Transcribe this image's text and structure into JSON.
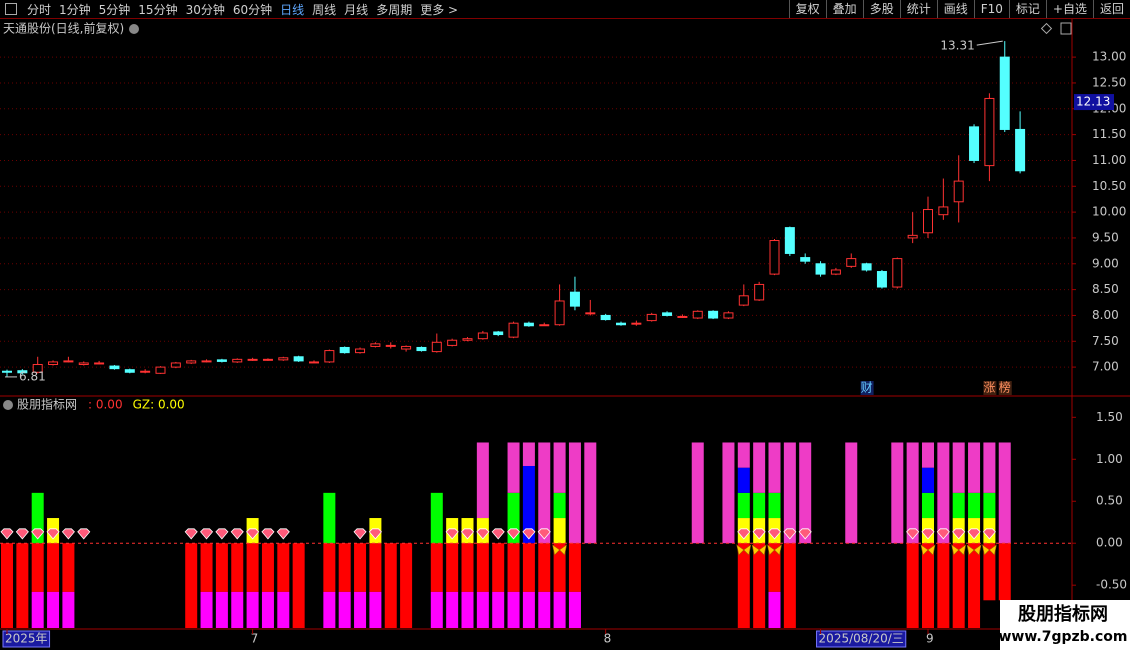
{
  "toolbar": {
    "left": [
      "分时",
      "1分钟",
      "5分钟",
      "15分钟",
      "30分钟",
      "60分钟",
      "日线",
      "周线",
      "月线",
      "多周期",
      "更多 >"
    ],
    "active": 6,
    "right": [
      "复权",
      "叠加",
      "多股",
      "统计",
      "画线",
      "F10",
      "标记",
      "+自选",
      "返回"
    ]
  },
  "watermark": {
    "title": "股朋指标网",
    "url": "www.7gpzb.com"
  },
  "chart_data": [
    {
      "type": "candlestick",
      "title": "天通股份(日线,前复权)",
      "categories": [
        "2025年",
        null,
        null,
        null,
        null,
        null,
        null,
        null,
        null,
        null,
        null,
        null,
        null,
        null,
        null,
        null,
        "7",
        null,
        null,
        null,
        null,
        null,
        null,
        null,
        null,
        null,
        null,
        null,
        null,
        null,
        null,
        null,
        null,
        null,
        null,
        null,
        null,
        null,
        null,
        "8",
        null,
        null,
        null,
        null,
        null,
        null,
        null,
        null,
        null,
        null,
        null,
        null,
        null,
        "2025/08/20/三",
        null,
        null,
        null,
        null,
        null,
        null,
        "9",
        null,
        null,
        null,
        null,
        null,
        null
      ],
      "open": [
        6.92,
        6.93,
        6.9,
        7.05,
        7.12,
        7.05,
        7.08,
        7.02,
        6.95,
        6.92,
        6.88,
        7.0,
        7.08,
        7.12,
        7.14,
        7.1,
        7.15,
        7.15,
        7.14,
        7.2,
        7.1,
        7.1,
        7.38,
        7.28,
        7.4,
        7.42,
        7.35,
        7.38,
        7.3,
        7.42,
        7.52,
        7.55,
        7.68,
        7.58,
        7.85,
        7.82,
        7.82,
        8.45,
        8.05,
        8.0,
        7.85,
        7.85,
        7.9,
        8.05,
        7.98,
        7.95,
        8.08,
        7.95,
        8.2,
        8.3,
        8.8,
        9.7,
        9.12,
        9.0,
        8.8,
        8.95,
        9.0,
        8.85,
        8.55,
        9.5,
        9.6,
        9.95,
        10.2,
        11.65,
        10.9,
        13.0,
        11.6
      ],
      "high": [
        6.95,
        6.96,
        7.2,
        7.13,
        7.2,
        7.11,
        7.12,
        7.04,
        6.97,
        6.96,
        7.02,
        7.1,
        7.14,
        7.15,
        7.16,
        7.17,
        7.18,
        7.17,
        7.2,
        7.22,
        7.13,
        7.34,
        7.4,
        7.38,
        7.48,
        7.48,
        7.42,
        7.4,
        7.65,
        7.55,
        7.58,
        7.7,
        7.7,
        7.88,
        7.88,
        7.86,
        8.6,
        8.75,
        8.3,
        8.03,
        7.88,
        7.9,
        8.05,
        8.08,
        8.02,
        8.1,
        8.1,
        8.08,
        8.6,
        8.65,
        9.48,
        9.72,
        9.2,
        9.05,
        8.92,
        9.2,
        9.02,
        8.88,
        9.12,
        10.0,
        10.3,
        10.65,
        11.1,
        11.7,
        12.3,
        13.31,
        11.95
      ],
      "low": [
        6.81,
        6.86,
        6.88,
        7.03,
        7.09,
        7.03,
        7.05,
        6.95,
        6.88,
        6.88,
        6.87,
        6.98,
        7.06,
        7.09,
        7.09,
        7.08,
        7.12,
        7.12,
        7.12,
        7.1,
        7.08,
        7.08,
        7.26,
        7.26,
        7.38,
        7.36,
        7.3,
        7.3,
        7.28,
        7.4,
        7.5,
        7.53,
        7.6,
        7.56,
        7.78,
        7.8,
        7.8,
        8.1,
        8.0,
        7.9,
        7.8,
        7.8,
        7.88,
        7.98,
        7.95,
        7.93,
        7.93,
        7.93,
        8.18,
        8.28,
        8.78,
        9.15,
        9.0,
        8.75,
        8.78,
        8.92,
        8.85,
        8.52,
        8.52,
        9.4,
        9.5,
        9.85,
        9.8,
        10.95,
        10.6,
        11.55,
        10.75
      ],
      "close": [
        6.9,
        6.89,
        7.05,
        7.1,
        7.12,
        7.08,
        7.08,
        6.97,
        6.9,
        6.92,
        7.0,
        7.08,
        7.12,
        7.12,
        7.11,
        7.15,
        7.15,
        7.15,
        7.18,
        7.12,
        7.1,
        7.32,
        7.28,
        7.35,
        7.45,
        7.42,
        7.4,
        7.32,
        7.48,
        7.52,
        7.55,
        7.66,
        7.63,
        7.85,
        7.8,
        7.82,
        8.28,
        8.18,
        8.05,
        7.92,
        7.82,
        7.85,
        8.02,
        8.0,
        7.98,
        8.08,
        7.95,
        8.05,
        8.38,
        8.6,
        9.45,
        9.2,
        9.05,
        8.8,
        8.88,
        9.1,
        8.88,
        8.55,
        9.1,
        9.55,
        10.05,
        10.1,
        10.6,
        11.0,
        12.2,
        11.6,
        10.8
      ],
      "up_color": "#ff3232",
      "down_color": "#54ffff",
      "ylim": [
        6.46,
        13.37
      ],
      "yticks": [
        {
          "value": 7,
          "label": "7.00"
        },
        {
          "value": 7.5,
          "label": "7.50"
        },
        {
          "value": 8,
          "label": "8.00"
        },
        {
          "value": 8.5,
          "label": "8.50"
        },
        {
          "value": 9,
          "label": "9.00"
        },
        {
          "value": 9.5,
          "label": "9.50"
        },
        {
          "value": 10,
          "label": "10.00"
        },
        {
          "value": 10.5,
          "label": "10.50"
        },
        {
          "value": 11,
          "label": "11.00"
        },
        {
          "value": 11.5,
          "label": "11.50"
        },
        {
          "value": 12,
          "label": "12.00"
        },
        {
          "value": 12.5,
          "label": "12.50"
        },
        {
          "value": 13,
          "label": "13.00"
        }
      ],
      "grid": true,
      "current_price": 12.13,
      "high_note": "13.31",
      "low_note": "6.81",
      "event_labels": [
        null,
        null,
        null,
        null,
        null,
        null,
        null,
        null,
        null,
        null,
        null,
        null,
        null,
        null,
        null,
        null,
        null,
        null,
        null,
        null,
        null,
        null,
        null,
        null,
        null,
        null,
        null,
        null,
        null,
        null,
        null,
        null,
        null,
        null,
        null,
        null,
        null,
        null,
        null,
        null,
        null,
        null,
        null,
        null,
        null,
        null,
        null,
        null,
        null,
        null,
        null,
        null,
        null,
        null,
        null,
        null,
        "财",
        null,
        null,
        null,
        null,
        null,
        null,
        null,
        "涨",
        "榜",
        null
      ]
    },
    {
      "type": "bar",
      "stacked": true,
      "title": "股朋指标网",
      "stats": [
        {
          "text": ": 0.00",
          "color": "#ff3232"
        },
        {
          "text": "GZ: 0.00",
          "color": "#ffff00"
        }
      ],
      "ylim": [
        -1.01,
        1.73
      ],
      "yticks": [
        {
          "value": 1.5,
          "label": "1.50"
        },
        {
          "value": 1,
          "label": "1.00"
        },
        {
          "value": 0.5,
          "label": "0.50"
        },
        {
          "value": 0,
          "label": "0.00"
        },
        {
          "value": -0.5,
          "label": "-0.50"
        }
      ],
      "grid": false,
      "zero_line": true,
      "series": [
        {
          "color": "#ff0000",
          "values": [
            -1.01,
            -1.01,
            -0.58,
            -0.58,
            -0.58,
            null,
            null,
            null,
            null,
            null,
            null,
            null,
            -1.01,
            -0.58,
            -0.58,
            -0.58,
            -0.58,
            -0.58,
            -0.58,
            -1.01,
            null,
            -0.58,
            -0.58,
            -0.58,
            -0.58,
            -1.01,
            -1.01,
            null,
            -0.58,
            -0.58,
            -0.58,
            -0.58,
            -0.58,
            -0.58,
            -0.58,
            -0.58,
            -0.58,
            -0.58,
            null,
            null,
            null,
            null,
            null,
            null,
            null,
            null,
            null,
            null,
            -1.01,
            -1.01,
            -0.58,
            -1.01,
            null,
            null,
            null,
            null,
            null,
            null,
            null,
            -1.01,
            -1.01,
            -1.01,
            -1.01,
            -1.01,
            -0.68,
            -0.68,
            null
          ]
        },
        {
          "color": "#ff00ff",
          "values": [
            null,
            null,
            -0.43,
            -0.43,
            -0.43,
            null,
            null,
            null,
            null,
            null,
            null,
            null,
            null,
            -0.43,
            -0.43,
            -0.43,
            -0.43,
            -0.43,
            -0.43,
            null,
            null,
            -0.43,
            -0.43,
            -0.43,
            -0.43,
            null,
            null,
            null,
            -0.43,
            -0.43,
            -0.43,
            -0.43,
            -0.43,
            -0.43,
            -0.43,
            -0.43,
            -0.43,
            -0.43,
            null,
            null,
            null,
            null,
            null,
            null,
            null,
            null,
            null,
            null,
            null,
            null,
            -0.43,
            null,
            null,
            null,
            null,
            null,
            null,
            null,
            null,
            null,
            null,
            null,
            null,
            null,
            null,
            null,
            null
          ]
        },
        {
          "color": "#ffff00",
          "values": [
            null,
            null,
            null,
            0.3,
            null,
            null,
            null,
            null,
            null,
            null,
            null,
            null,
            null,
            null,
            null,
            null,
            0.3,
            null,
            null,
            null,
            null,
            null,
            null,
            null,
            0.3,
            null,
            null,
            null,
            null,
            0.3,
            0.3,
            0.3,
            null,
            null,
            null,
            null,
            0.3,
            null,
            null,
            null,
            null,
            null,
            null,
            null,
            null,
            null,
            null,
            null,
            0.3,
            0.3,
            0.3,
            null,
            null,
            null,
            null,
            null,
            null,
            null,
            null,
            null,
            0.3,
            null,
            0.3,
            0.3,
            0.3,
            null,
            null
          ]
        },
        {
          "color": "#00ff00",
          "values": [
            null,
            null,
            0.6,
            null,
            null,
            null,
            null,
            null,
            null,
            null,
            null,
            null,
            null,
            null,
            null,
            null,
            null,
            null,
            null,
            null,
            null,
            0.6,
            null,
            null,
            null,
            null,
            null,
            null,
            0.6,
            null,
            null,
            null,
            null,
            0.6,
            null,
            null,
            0.3,
            null,
            null,
            null,
            null,
            null,
            null,
            null,
            null,
            null,
            null,
            null,
            0.3,
            0.3,
            0.3,
            null,
            null,
            null,
            null,
            null,
            null,
            null,
            null,
            null,
            0.3,
            null,
            0.3,
            0.3,
            0.3,
            null,
            null
          ]
        },
        {
          "color": "#0000ff",
          "values": [
            null,
            null,
            null,
            null,
            null,
            null,
            null,
            null,
            null,
            null,
            null,
            null,
            null,
            null,
            null,
            null,
            null,
            null,
            null,
            null,
            null,
            null,
            null,
            null,
            null,
            null,
            null,
            null,
            null,
            null,
            null,
            null,
            null,
            null,
            0.92,
            null,
            null,
            null,
            null,
            null,
            null,
            null,
            null,
            null,
            null,
            null,
            null,
            null,
            0.3,
            null,
            null,
            null,
            null,
            null,
            null,
            null,
            null,
            null,
            null,
            null,
            0.3,
            null,
            null,
            null,
            null,
            null,
            null
          ]
        },
        {
          "color": "#ee3cc6",
          "values": [
            null,
            null,
            null,
            null,
            null,
            null,
            null,
            null,
            null,
            null,
            null,
            null,
            null,
            null,
            null,
            null,
            null,
            null,
            null,
            null,
            null,
            null,
            null,
            null,
            null,
            null,
            null,
            null,
            null,
            null,
            null,
            0.9,
            null,
            0.6,
            0.28,
            1.2,
            0.6,
            1.2,
            1.2,
            null,
            null,
            null,
            null,
            null,
            null,
            1.2,
            null,
            1.2,
            0.3,
            0.6,
            0.6,
            1.2,
            1.2,
            null,
            null,
            1.2,
            null,
            null,
            1.2,
            1.2,
            0.3,
            1.2,
            0.6,
            0.6,
            0.6,
            1.2,
            null
          ]
        },
        {
          "shape": "diamond",
          "color": "#ff5a7a",
          "values": [
            0.1,
            0.1,
            0.1,
            0.1,
            0.1,
            0.1,
            null,
            null,
            null,
            null,
            null,
            null,
            0.1,
            0.1,
            0.1,
            0.1,
            0.1,
            0.1,
            0.1,
            null,
            null,
            null,
            null,
            0.1,
            0.1,
            null,
            null,
            null,
            null,
            0.1,
            0.1,
            0.1,
            0.1,
            0.1,
            0.1,
            0.1,
            null,
            null,
            null,
            null,
            null,
            null,
            null,
            null,
            null,
            null,
            null,
            null,
            0.1,
            0.1,
            0.1,
            0.1,
            0.1,
            null,
            null,
            null,
            null,
            null,
            null,
            0.1,
            0.1,
            0.1,
            0.1,
            0.1,
            0.1,
            null,
            null
          ]
        },
        {
          "shape": "butterfly",
          "color": "#ffcc00",
          "values": [
            null,
            null,
            null,
            null,
            null,
            null,
            null,
            null,
            null,
            null,
            null,
            null,
            null,
            null,
            null,
            null,
            null,
            null,
            null,
            null,
            null,
            null,
            null,
            null,
            null,
            null,
            null,
            null,
            null,
            null,
            null,
            null,
            null,
            null,
            null,
            null,
            -0.08,
            null,
            null,
            null,
            null,
            null,
            null,
            null,
            null,
            null,
            null,
            null,
            -0.08,
            -0.08,
            -0.08,
            null,
            null,
            null,
            null,
            null,
            null,
            null,
            null,
            null,
            -0.08,
            null,
            -0.08,
            -0.08,
            -0.08,
            null,
            null
          ]
        }
      ]
    }
  ]
}
